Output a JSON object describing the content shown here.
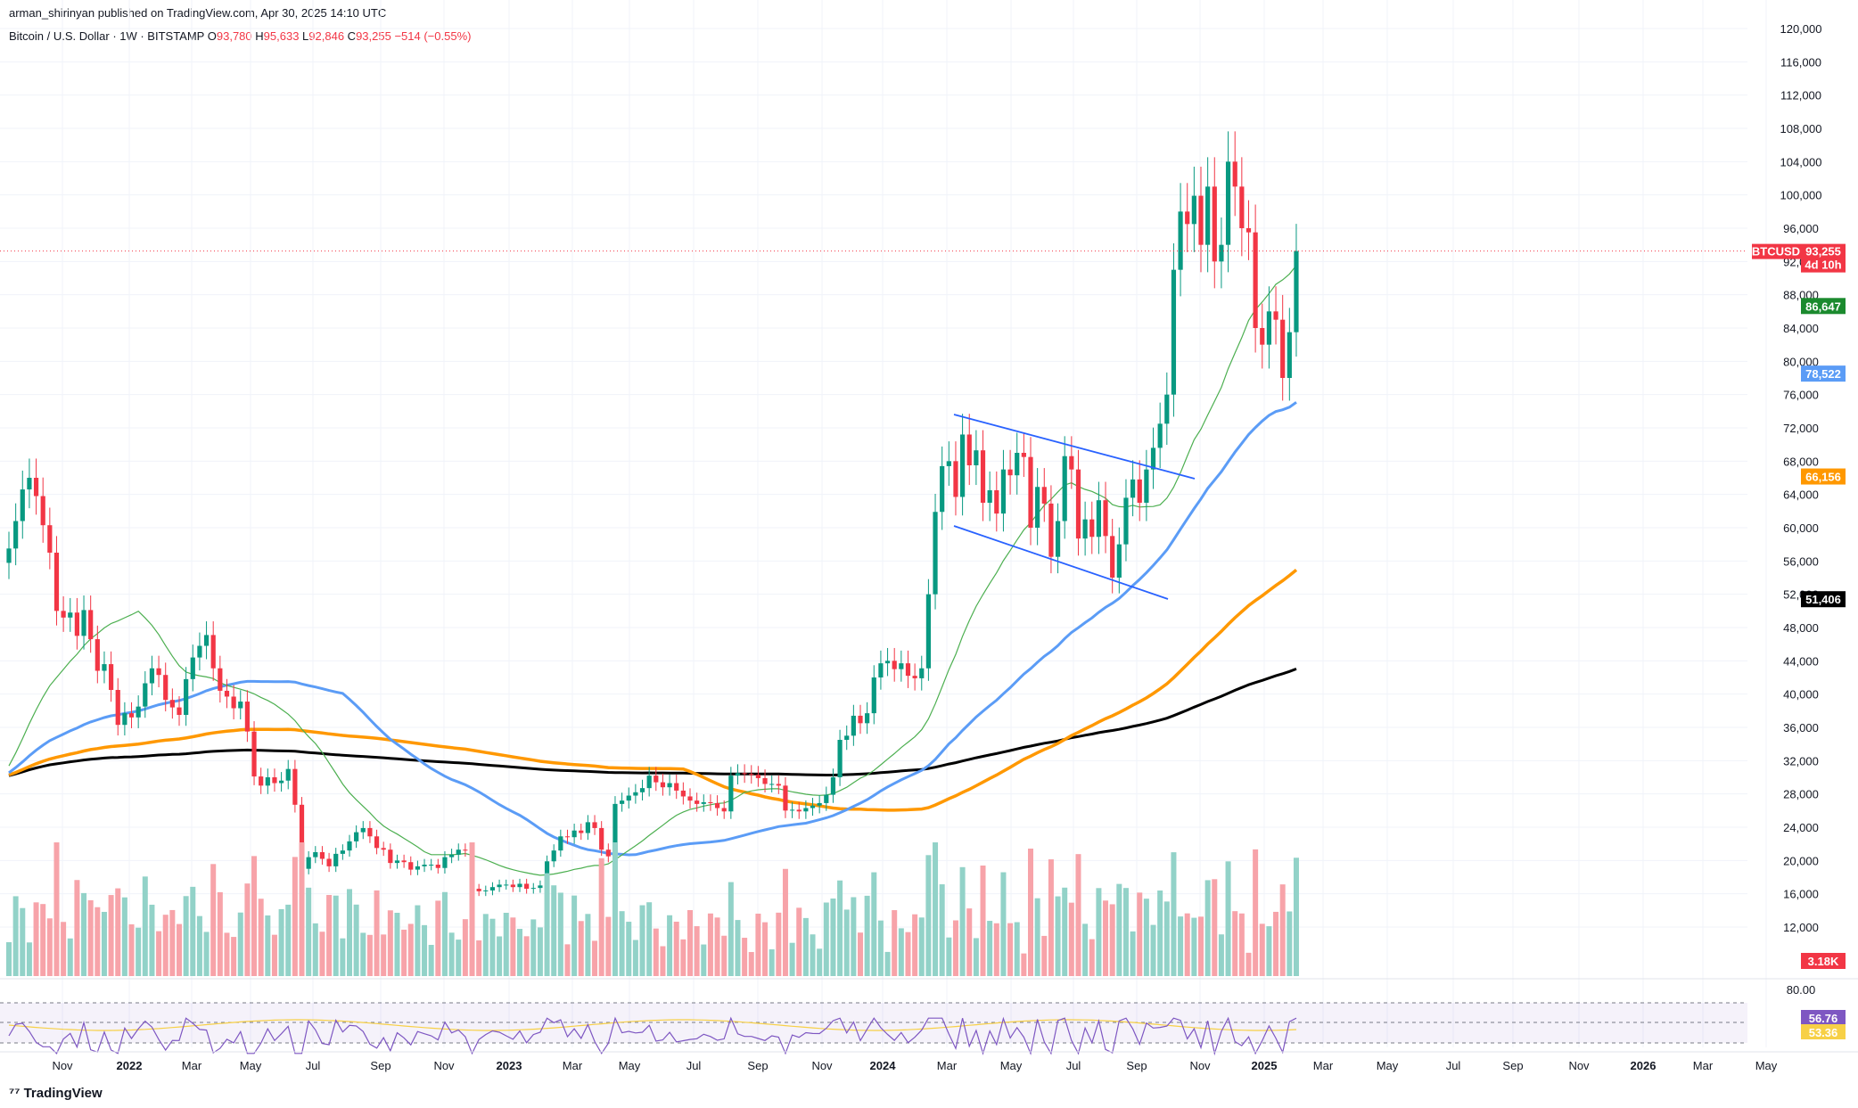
{
  "header": {
    "published": "arman_shirinyan published on TradingView.com, Apr 30, 2025 14:10 UTC",
    "symbol_line": "Bitcoin / U.S. Dollar · 1W · BITSTAMP",
    "open_label": "O",
    "open": "93,780",
    "high_label": "H",
    "high": "95,633",
    "low_label": "L",
    "low": "92,846",
    "close_label": "C",
    "close": "93,255",
    "change": "−514 (−0.55%)"
  },
  "footer": {
    "logo_text": "TradingView"
  },
  "price_badge": {
    "symbol": "BTCUSD",
    "value": "93,255",
    "countdown": "4d 10h"
  },
  "indicator_badges": [
    {
      "value": "86,647",
      "color": "#1b8a2e"
    },
    {
      "value": "78,522",
      "color": "#5b9cf6"
    },
    {
      "value": "66,156",
      "color": "#ff9800"
    },
    {
      "value": "51,406",
      "color": "#000000"
    }
  ],
  "volume_badge": "3.18K",
  "rsi_badges": [
    {
      "value": "56.76",
      "color": "#7e57c2"
    },
    {
      "value": "53.36",
      "color": "#f7d046"
    }
  ],
  "colors": {
    "up": "#089981",
    "down": "#f23645",
    "vol_up": "#92d2c8",
    "vol_down": "#f7a3a9",
    "ma20": "#4caf50",
    "ma50": "#5b9cf6",
    "ma100": "#ff9800",
    "ma200": "#000000",
    "rsi": "#7e57c2",
    "rsi_ma": "#f7d046"
  },
  "chart_data": {
    "type": "line",
    "title": "Bitcoin / U.S. Dollar · 1W · BITSTAMP",
    "y_ticks": [
      "120,000",
      "116,000",
      "112,000",
      "108,000",
      "104,000",
      "100,000",
      "96,000",
      "92,000",
      "88,000",
      "84,000",
      "80,000",
      "76,000",
      "72,000",
      "68,000",
      "64,000",
      "60,000",
      "56,000",
      "52,000",
      "48,000",
      "44,000",
      "40,000",
      "36,000",
      "32,000",
      "28,000",
      "24,000",
      "20,000",
      "16,000",
      "12,000"
    ],
    "rsi_ticks": [
      "80.00"
    ],
    "x_ticks": [
      "Nov",
      "2022",
      "Mar",
      "May",
      "Jul",
      "Sep",
      "Nov",
      "2023",
      "Mar",
      "May",
      "Jul",
      "Sep",
      "Nov",
      "2024",
      "Mar",
      "May",
      "Jul",
      "Sep",
      "Nov",
      "2025",
      "Mar",
      "May",
      "Jul",
      "Sep",
      "Nov",
      "2026",
      "Mar",
      "May"
    ],
    "ylim": [
      12000,
      120000
    ],
    "weeks": 185,
    "closes": [
      57500,
      60800,
      64600,
      66000,
      63800,
      60300,
      57000,
      50000,
      49200,
      49800,
      47000,
      50100,
      46600,
      42800,
      43600,
      40500,
      36300,
      37700,
      37200,
      38500,
      41300,
      43100,
      42300,
      39300,
      38400,
      37500,
      41800,
      44400,
      45800,
      47100,
      43100,
      40400,
      39700,
      38300,
      39100,
      35500,
      30100,
      29000,
      30000,
      29300,
      29600,
      31000,
      26700,
      19000,
      20400,
      21000,
      20200,
      19300,
      20800,
      21200,
      22300,
      23400,
      23900,
      22900,
      21500,
      21300,
      19700,
      20000,
      19800,
      18900,
      19300,
      19500,
      19500,
      19100,
      20400,
      20700,
      21300,
      21200,
      16600,
      16300,
      16400,
      16800,
      17100,
      17100,
      16800,
      17200,
      16600,
      16700,
      17000,
      19900,
      21200,
      22900,
      22800,
      23600,
      23300,
      24600,
      23900,
      21300,
      20500,
      26800,
      27200,
      27800,
      28200,
      28700,
      30200,
      29400,
      28800,
      29300,
      28400,
      27700,
      27200,
      26800,
      27000,
      26900,
      26300,
      25900,
      30200,
      30500,
      30400,
      30300,
      29900,
      29200,
      29200,
      29000,
      26000,
      26100,
      25900,
      26300,
      26600,
      26900,
      27900,
      30000,
      34500,
      35000,
      37400,
      36500,
      37700,
      42000,
      43700,
      44000,
      43000,
      43700,
      42200,
      41900,
      43100,
      52000,
      61900,
      67400,
      68000,
      63700,
      71200,
      67500,
      69300,
      63000,
      64500,
      61700,
      67000,
      66300,
      69000,
      68500,
      60000,
      64900,
      62900,
      56500,
      60800,
      68600,
      67000,
      58700,
      61000,
      58900,
      63300,
      59000,
      54000,
      58000,
      63600,
      65800,
      63000,
      67000,
      69600,
      72500,
      76000,
      91000,
      98000,
      96500,
      99900,
      94000,
      101000,
      92000,
      94000,
      104000,
      101000,
      96000,
      95500,
      84000,
      82000,
      86000,
      85000,
      78000,
      83500,
      93255
    ],
    "key_levels": {
      "last_close": 93255,
      "ma20": 86647,
      "ma50": 78522,
      "ma100": 66156,
      "ma200": 51406
    },
    "rsi_last": 56.76,
    "rsi_ma_last": 53.36,
    "volume_last": "3.18K",
    "grid": true,
    "legend": "none"
  }
}
